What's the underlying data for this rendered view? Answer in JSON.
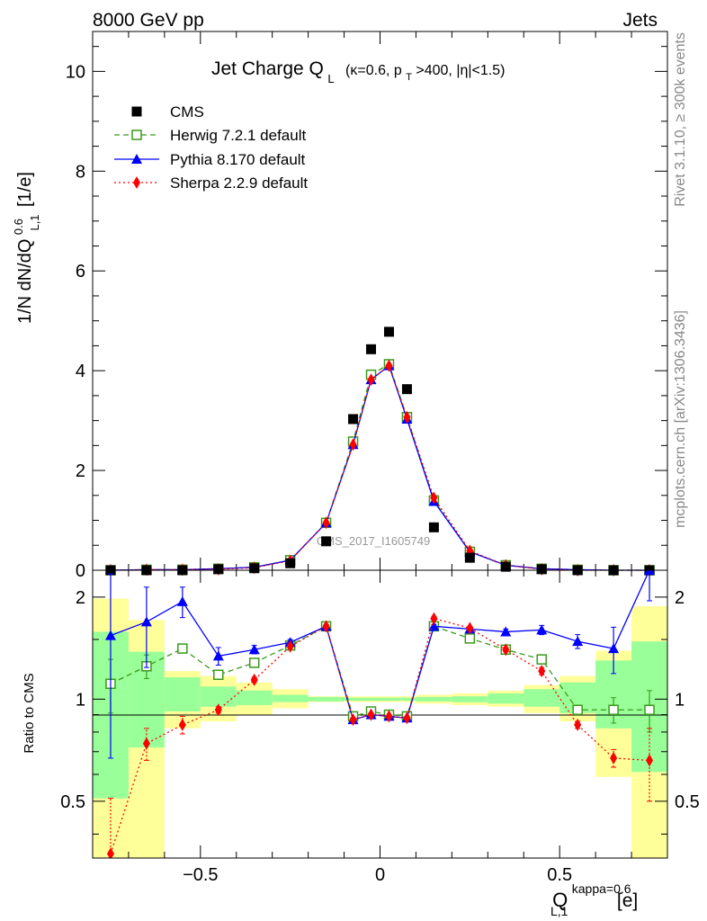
{
  "header": {
    "left": "8000 GeV pp",
    "right": "Jets"
  },
  "side_labels": {
    "rivet": "Rivet 3.1.10, ≥ 300k events",
    "mcplots": "mcplots.cern.ch [arXiv:1306.3436]"
  },
  "chart_data": [
    {
      "type": "scatter",
      "title": "Jet Charge Q",
      "title_sub": "L",
      "title_suffix": "(κ=0.6, p",
      "title_suffix_sub": "T",
      "title_suffix_end": ">400, |η|<1.5)",
      "watermark": "CMS_2017_I1605749",
      "ylabel_prefix": "1/N dN/dQ",
      "ylabel_sup": "0.6",
      "ylabel_sub": "L,1",
      "ylabel_suffix": "[1/e]",
      "ylim": [
        0,
        10.8
      ],
      "xlim": [
        -0.8,
        0.8
      ],
      "yticks": [
        0,
        2,
        4,
        6,
        8,
        10
      ],
      "x": [
        -0.75,
        -0.65,
        -0.55,
        -0.45,
        -0.35,
        -0.25,
        -0.15,
        -0.075,
        -0.025,
        0.025,
        0.075,
        0.15,
        0.25,
        0.35,
        0.45,
        0.55,
        0.65,
        0.75
      ],
      "series": [
        {
          "name": "CMS",
          "style": "data",
          "color": "#000000",
          "values": [
            0.0,
            0.0,
            0.0,
            0.02,
            0.04,
            0.14,
            0.58,
            3.03,
            4.43,
            4.78,
            3.63,
            0.86,
            0.25,
            0.07,
            0.02,
            0.0,
            0.0,
            0.0
          ]
        },
        {
          "name": "Herwig 7.2.1 default",
          "style": "dashed",
          "color": "#3a9a1a",
          "values": [
            0.0,
            0.01,
            0.01,
            0.03,
            0.06,
            0.2,
            0.95,
            2.58,
            3.92,
            4.13,
            3.07,
            1.4,
            0.37,
            0.1,
            0.03,
            0.01,
            0.0,
            0.0
          ]
        },
        {
          "name": "Pythia 8.170 default",
          "style": "solid",
          "color": "#0000ff",
          "values": [
            0.0,
            0.01,
            0.01,
            0.03,
            0.06,
            0.2,
            0.95,
            2.52,
            3.82,
            4.1,
            3.03,
            1.38,
            0.37,
            0.1,
            0.03,
            0.01,
            0.0,
            0.0
          ]
        },
        {
          "name": "Sherpa 2.2.9 default",
          "style": "dotted",
          "color": "#ff0000",
          "values": [
            0.0,
            0.01,
            0.01,
            0.02,
            0.05,
            0.19,
            0.95,
            2.52,
            3.82,
            4.1,
            3.07,
            1.45,
            0.39,
            0.1,
            0.02,
            0.0,
            0.0,
            0.0
          ]
        }
      ]
    },
    {
      "type": "line",
      "ylabel": "Ratio to CMS",
      "xlabel_prefix": "Q",
      "xlabel_sup": "kappa=0.6",
      "xlabel_sub": "L,1",
      "xlabel_suffix": "[e]",
      "yscale": "log",
      "ylim": [
        0.34,
        2.4
      ],
      "xlim": [
        -0.8,
        0.8
      ],
      "xticks": [
        -0.5,
        0,
        0.5
      ],
      "xtick_labels": [
        "−0.5",
        "0",
        "0.5"
      ],
      "yticks": [
        0.5,
        1,
        2
      ],
      "ytick_labels": [
        "0.5",
        "1",
        "2"
      ],
      "x": [
        -0.75,
        -0.65,
        -0.55,
        -0.45,
        -0.35,
        -0.25,
        -0.15,
        -0.075,
        -0.025,
        0.025,
        0.075,
        0.15,
        0.25,
        0.35,
        0.45,
        0.55,
        0.65,
        0.75
      ],
      "x_edges": [
        -0.8,
        -0.7,
        -0.6,
        -0.5,
        -0.4,
        -0.3,
        -0.2,
        -0.1,
        -0.05,
        0.0,
        0.05,
        0.1,
        0.2,
        0.3,
        0.4,
        0.5,
        0.6,
        0.7,
        0.8
      ],
      "band_inner": [
        [
          0.51,
          1.58
        ],
        [
          0.72,
          1.38
        ],
        [
          0.92,
          1.16
        ],
        [
          0.95,
          1.09
        ],
        [
          0.96,
          1.06
        ],
        [
          0.98,
          1.03
        ],
        [
          0.985,
          1.015
        ],
        [
          0.99,
          1.01
        ],
        [
          0.99,
          1.01
        ],
        [
          0.99,
          1.01
        ],
        [
          0.99,
          1.01
        ],
        [
          0.985,
          1.015
        ],
        [
          0.98,
          1.02
        ],
        [
          0.97,
          1.04
        ],
        [
          0.95,
          1.07
        ],
        [
          0.91,
          1.12
        ],
        [
          0.82,
          1.3
        ],
        [
          0.61,
          1.48
        ]
      ],
      "band_outer": [
        [
          0.34,
          1.98
        ],
        [
          0.34,
          1.71
        ],
        [
          0.82,
          1.21
        ],
        [
          0.86,
          1.17
        ],
        [
          0.9,
          1.12
        ],
        [
          0.94,
          1.07
        ],
        [
          0.98,
          1.02
        ],
        [
          0.98,
          1.02
        ],
        [
          0.98,
          1.02
        ],
        [
          0.98,
          1.02
        ],
        [
          0.98,
          1.02
        ],
        [
          0.97,
          1.03
        ],
        [
          0.96,
          1.04
        ],
        [
          0.95,
          1.06
        ],
        [
          0.91,
          1.1
        ],
        [
          0.86,
          1.17
        ],
        [
          0.59,
          1.39
        ],
        [
          0.34,
          1.88
        ]
      ],
      "series": [
        {
          "name": "Herwig 7.2.1 default",
          "style": "dashed",
          "color": "#3a9a1a",
          "values": [
            1.11,
            1.25,
            1.41,
            1.18,
            1.28,
            1.44,
            1.64,
            0.89,
            0.92,
            0.9,
            0.89,
            1.64,
            1.51,
            1.4,
            1.31,
            0.93,
            0.93,
            0.93
          ],
          "err_low": [
            0.2,
            0.1,
            0.04,
            0.02,
            0.02,
            0.02,
            0.02,
            0.01,
            0.01,
            0.01,
            0.01,
            0.02,
            0.02,
            0.02,
            0.03,
            0.03,
            0.08,
            0.13
          ],
          "err_high": [
            0.2,
            0.1,
            0.04,
            0.02,
            0.02,
            0.02,
            0.02,
            0.01,
            0.01,
            0.01,
            0.01,
            0.02,
            0.02,
            0.02,
            0.03,
            0.03,
            0.08,
            0.13
          ]
        },
        {
          "name": "Pythia 8.170 default",
          "style": "solid",
          "color": "#0000ff",
          "values": [
            1.54,
            1.69,
            1.94,
            1.34,
            1.4,
            1.47,
            1.64,
            0.87,
            0.9,
            0.89,
            0.88,
            1.64,
            1.61,
            1.58,
            1.6,
            1.48,
            1.41,
            2.45
          ],
          "err_low": [
            0.87,
            0.45,
            0.2,
            0.08,
            0.04,
            0.03,
            0.02,
            0.01,
            0.01,
            0.01,
            0.01,
            0.02,
            0.02,
            0.03,
            0.05,
            0.07,
            0.22,
            0.5
          ],
          "err_high": [
            0.8,
            0.45,
            0.2,
            0.08,
            0.04,
            0.03,
            0.02,
            0.01,
            0.01,
            0.01,
            0.01,
            0.02,
            0.02,
            0.03,
            0.05,
            0.07,
            0.22,
            0.5
          ]
        },
        {
          "name": "Sherpa 2.2.9 default",
          "style": "dotted",
          "color": "#ff0000",
          "values": [
            0.35,
            0.74,
            0.84,
            0.93,
            1.14,
            1.43,
            1.64,
            0.87,
            0.9,
            0.89,
            0.88,
            1.73,
            1.62,
            1.4,
            1.21,
            0.84,
            0.67,
            0.66
          ],
          "err_low": [
            0.16,
            0.08,
            0.05,
            0.02,
            0.02,
            0.02,
            0.02,
            0.01,
            0.01,
            0.01,
            0.01,
            0.02,
            0.02,
            0.02,
            0.03,
            0.02,
            0.04,
            0.16
          ],
          "err_high": [
            0.16,
            0.08,
            0.05,
            0.02,
            0.02,
            0.02,
            0.02,
            0.01,
            0.01,
            0.01,
            0.01,
            0.02,
            0.02,
            0.02,
            0.03,
            0.02,
            0.04,
            0.16
          ]
        }
      ]
    }
  ]
}
